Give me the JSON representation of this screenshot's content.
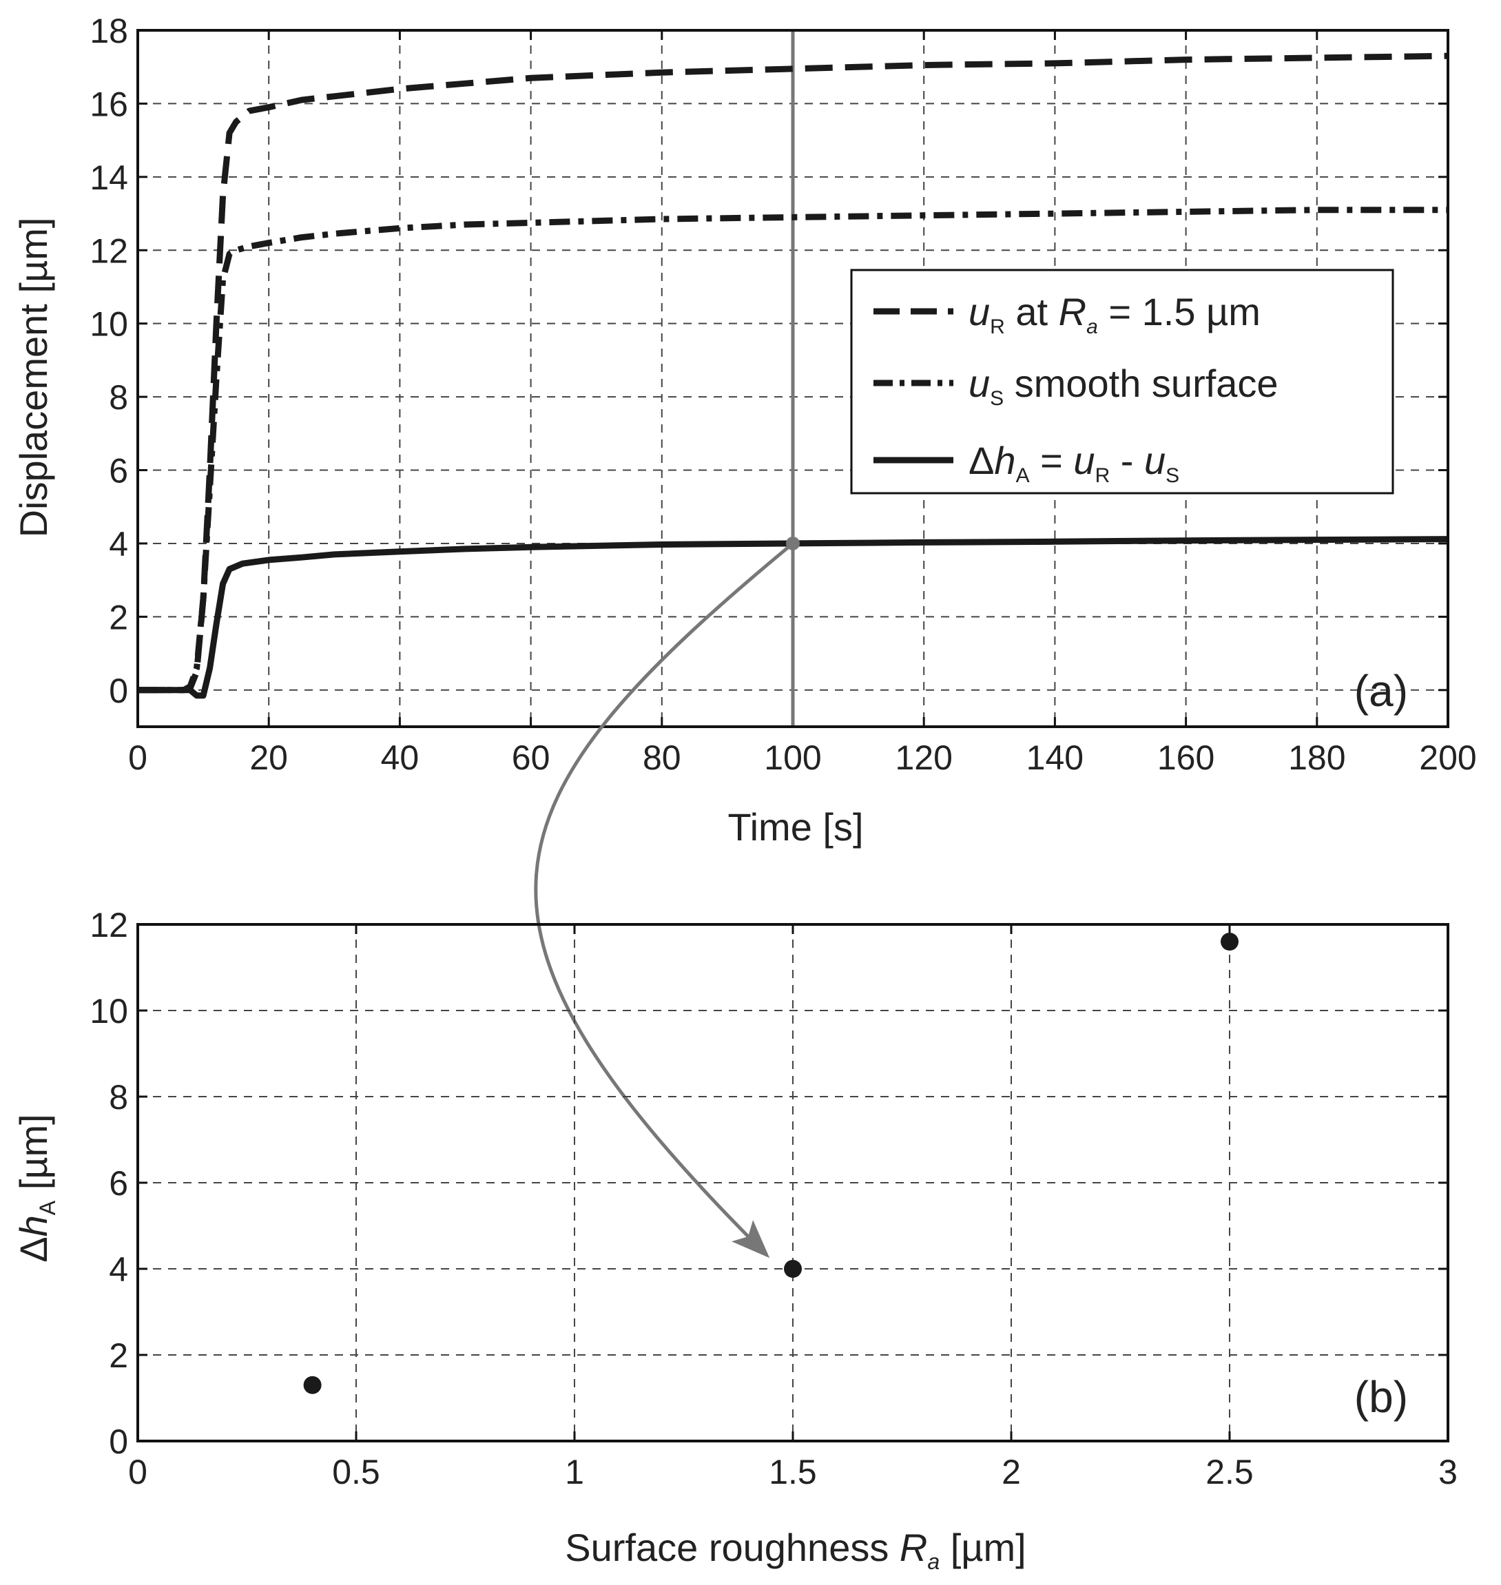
{
  "figure": {
    "colors": {
      "series": "#1a1a1a",
      "annotation": "#777777",
      "grid": "#444444"
    },
    "arrow": {
      "from_panel": "a",
      "from": [
        100,
        4
      ],
      "to_panel": "b",
      "to": [
        1.5,
        4
      ]
    }
  },
  "chart_data": [
    {
      "panel": "a",
      "type": "line",
      "panel_label": "(a)",
      "xlabel": "Time [s]",
      "ylabel": "Displacement [µm]",
      "xlim": [
        0,
        200
      ],
      "ylim": [
        -1,
        18
      ],
      "xticks": [
        "0",
        "20",
        "40",
        "60",
        "80",
        "100",
        "120",
        "140",
        "160",
        "180",
        "200"
      ],
      "yticks": [
        "0",
        "2",
        "4",
        "6",
        "8",
        "10",
        "12",
        "14",
        "16",
        "18"
      ],
      "grid": true,
      "legend_position": "upper-right",
      "series": [
        {
          "name": "uR at Ra = 1.5 µm",
          "legend": {
            "var": "u",
            "sub": "R",
            "mid": " at ",
            "var2": "R",
            "sub2": "a",
            "tail": " = 1.5 µm"
          },
          "style": "dashed",
          "x": [
            0,
            7,
            8,
            9,
            10,
            11,
            12,
            13,
            14,
            15,
            17,
            20,
            25,
            30,
            40,
            50,
            60,
            80,
            100,
            120,
            140,
            160,
            180,
            200
          ],
          "y": [
            0,
            0,
            0.05,
            0.5,
            2.5,
            6,
            10,
            13.5,
            15.2,
            15.5,
            15.8,
            15.9,
            16.1,
            16.2,
            16.4,
            16.55,
            16.7,
            16.85,
            16.95,
            17.05,
            17.1,
            17.2,
            17.25,
            17.3
          ]
        },
        {
          "name": "uS smooth surface",
          "legend": {
            "var": "u",
            "sub": "S",
            "tail": " smooth surface"
          },
          "style": "dashdot",
          "x": [
            0,
            7,
            8,
            9,
            10,
            11,
            12,
            13,
            14,
            15,
            17,
            20,
            25,
            30,
            40,
            50,
            60,
            80,
            100,
            120,
            140,
            160,
            180,
            200
          ],
          "y": [
            0,
            0,
            0.1,
            0.6,
            2.5,
            5.5,
            8.5,
            11.2,
            11.9,
            12.0,
            12.1,
            12.2,
            12.35,
            12.45,
            12.6,
            12.7,
            12.75,
            12.85,
            12.9,
            12.95,
            13.0,
            13.05,
            13.1,
            13.1
          ]
        },
        {
          "name": "ΔhA = uR - uS",
          "legend": {
            "prefix": "Δ",
            "var": "h",
            "sub": "A",
            "mid": " = ",
            "var2": "u",
            "sub2": "R",
            "mid2": " - ",
            "var3": "u",
            "sub3": "S"
          },
          "style": "solid",
          "x": [
            0,
            7,
            8,
            9,
            10,
            11,
            12,
            13,
            14,
            16,
            20,
            25,
            30,
            40,
            50,
            60,
            80,
            100,
            120,
            140,
            160,
            180,
            200
          ],
          "y": [
            0,
            0,
            0,
            -0.15,
            -0.15,
            0.6,
            1.8,
            2.9,
            3.3,
            3.45,
            3.55,
            3.62,
            3.7,
            3.78,
            3.85,
            3.9,
            3.97,
            4.0,
            4.03,
            4.05,
            4.08,
            4.1,
            4.12
          ]
        }
      ],
      "annotations": [
        {
          "type": "vertical-line",
          "x": 100
        },
        {
          "type": "marker",
          "x": 100,
          "y": 4
        }
      ]
    },
    {
      "panel": "b",
      "type": "scatter",
      "panel_label": "(b)",
      "xlabel": {
        "lead": "Surface roughness ",
        "var": "R",
        "sub": "a",
        "tail": " [µm]"
      },
      "ylabel": {
        "lead": "Δ",
        "var": "h",
        "sub": "A",
        "tail": " [µm]"
      },
      "xlim": [
        0,
        3
      ],
      "ylim": [
        0,
        12
      ],
      "xticks": [
        "0",
        "0.5",
        "1",
        "1.5",
        "2",
        "2.5",
        "3"
      ],
      "yticks": [
        "0",
        "2",
        "4",
        "6",
        "8",
        "10",
        "12"
      ],
      "grid": true,
      "series": [
        {
          "points": [
            {
              "x": 0.4,
              "y": 1.3
            },
            {
              "x": 1.5,
              "y": 4.0
            },
            {
              "x": 2.5,
              "y": 11.6
            }
          ]
        }
      ]
    }
  ]
}
